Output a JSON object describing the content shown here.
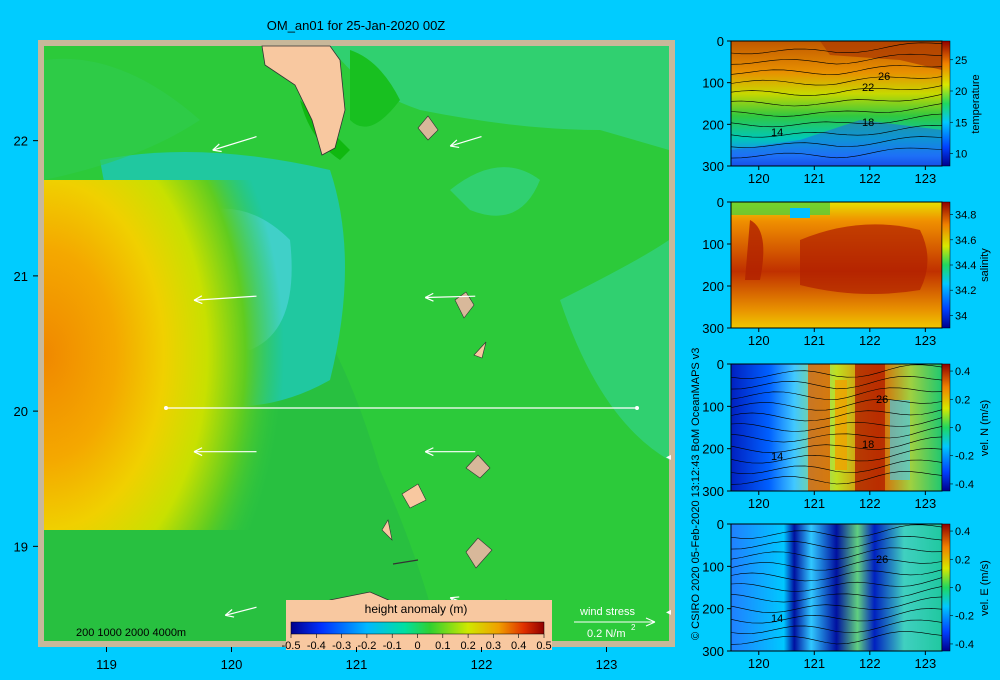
{
  "title": "OM_an01 for 25-Jan-2020 00Z",
  "credit": "© CSIRO 2020  05-Feb-2020 13:12:43 BoM OceanMAPS v3",
  "depth_legend": "200  1000  2000  4000m",
  "wind_stress": {
    "label": "wind stress",
    "value": "0.2 N/m",
    "superscript": "2"
  },
  "colors": {
    "background": "#00ccff",
    "land": "#f8c8a0",
    "frame": "#c8b89a",
    "section_line": "#ffffff",
    "arrow": "#ffffff"
  },
  "chart_data": [
    {
      "type": "heatmap",
      "name": "height anomaly map",
      "xlim": [
        118.5,
        123.5
      ],
      "ylim": [
        18.3,
        22.7
      ],
      "xticks": [
        "119",
        "120",
        "121",
        "122",
        "123"
      ],
      "yticks": [
        "19",
        "20",
        "21",
        "22"
      ],
      "colorbar": {
        "title": "height anomaly  (m)",
        "ticks": [
          "-0.5",
          "-0.4",
          "-0.3",
          "-0.2",
          "-0.1",
          "0",
          "0.1",
          "0.2",
          "0.3",
          "0.4",
          "0.5"
        ],
        "range": [
          -0.5,
          0.5
        ]
      },
      "features": [
        {
          "kind": "high",
          "center": [
            118.6,
            20.4
          ],
          "value": 0.35
        },
        {
          "kind": "low",
          "center": [
            120.3,
            21.1
          ],
          "value": -0.05
        }
      ],
      "section_line": {
        "lat": 20.0,
        "lon_start": 119.5,
        "lon_end": 123.2
      },
      "wind_vectors": [
        {
          "lon": 120.2,
          "lat": 22.03,
          "dlon": -0.35,
          "dlat": -0.1
        },
        {
          "lon": 122.0,
          "lat": 22.03,
          "dlon": -0.25,
          "dlat": -0.07
        },
        {
          "lon": 120.2,
          "lat": 20.85,
          "dlon": -0.5,
          "dlat": -0.03
        },
        {
          "lon": 121.95,
          "lat": 20.85,
          "dlon": -0.4,
          "dlat": -0.01
        },
        {
          "lon": 120.2,
          "lat": 19.7,
          "dlon": -0.5,
          "dlat": 0
        },
        {
          "lon": 121.95,
          "lat": 19.7,
          "dlon": -0.4,
          "dlat": 0
        },
        {
          "lon": 120.2,
          "lat": 18.55,
          "dlon": -0.25,
          "dlat": -0.06
        },
        {
          "lon": 121.95,
          "lat": 18.55,
          "dlon": -0.2,
          "dlat": 0.07
        }
      ]
    },
    {
      "type": "heatmap",
      "name": "temperature section",
      "xlim": [
        119.5,
        123.3
      ],
      "ylim": [
        300,
        0
      ],
      "xticks": [
        "120",
        "121",
        "122",
        "123"
      ],
      "yticks": [
        "0",
        "100",
        "200",
        "300"
      ],
      "colorbar": {
        "label": "temperature",
        "ticks": [
          "10",
          "15",
          "20",
          "25"
        ],
        "range": [
          8,
          28
        ]
      },
      "contour_labels": [
        "26",
        "22",
        "18",
        "14"
      ]
    },
    {
      "type": "heatmap",
      "name": "salinity section",
      "xlim": [
        119.5,
        123.3
      ],
      "ylim": [
        300,
        0
      ],
      "xticks": [
        "120",
        "121",
        "122",
        "123"
      ],
      "yticks": [
        "0",
        "100",
        "200",
        "300"
      ],
      "colorbar": {
        "label": "salinity",
        "ticks": [
          "34",
          "34.2",
          "34.4",
          "34.6",
          "34.8"
        ],
        "range": [
          33.9,
          34.9
        ]
      },
      "contour_labels": []
    },
    {
      "type": "heatmap",
      "name": "north velocity section",
      "xlim": [
        119.5,
        123.3
      ],
      "ylim": [
        300,
        0
      ],
      "xticks": [
        "120",
        "121",
        "122",
        "123"
      ],
      "yticks": [
        "0",
        "100",
        "200",
        "300"
      ],
      "colorbar": {
        "label": "vel. N  (m/s)",
        "ticks": [
          "-0.4",
          "-0.2",
          "0",
          "0.2",
          "0.4"
        ],
        "range": [
          -0.45,
          0.45
        ]
      },
      "contour_labels": [
        "26",
        "18",
        "14"
      ]
    },
    {
      "type": "heatmap",
      "name": "east velocity section",
      "xlim": [
        119.5,
        123.3
      ],
      "ylim": [
        300,
        0
      ],
      "xticks": [
        "120",
        "121",
        "122",
        "123"
      ],
      "yticks": [
        "0",
        "100",
        "200",
        "300"
      ],
      "colorbar": {
        "label": "vel. E  (m/s)",
        "ticks": [
          "-0.4",
          "-0.2",
          "0",
          "0.2",
          "0.4"
        ],
        "range": [
          -0.45,
          0.45
        ]
      },
      "contour_labels": [
        "26",
        "14"
      ]
    }
  ]
}
